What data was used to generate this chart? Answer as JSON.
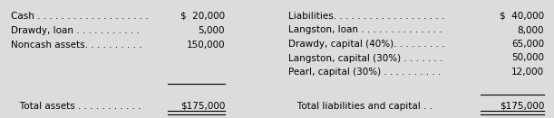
{
  "bg_color": "#dcdcdc",
  "left_items": [
    {
      "label": "Cash . . . . . . . . . . . . . . . . . . .",
      "value": "$  20,000"
    },
    {
      "label": "Drawdy, loan . . . . . . . . . . .",
      "value": "5,000"
    },
    {
      "label": "Noncash assets. . . . . . . . . .",
      "value": "150,000"
    }
  ],
  "left_total_label": "   Total assets . . . . . . . . . . .",
  "left_total_value": "$175,000",
  "right_items": [
    {
      "label": "Liabilities. . . . . . . . . . . . . . . . . . .",
      "value": "$  40,000"
    },
    {
      "label": "Langston, loan . . . . . . . . . . . . . .",
      "value": "8,000"
    },
    {
      "label": "Drawdy, capital (40%). . . . . . . . .",
      "value": "65,000"
    },
    {
      "label": "Langston, capital (30%) . . . . . . .",
      "value": "50,000"
    },
    {
      "label": "Pearl, capital (30%) . . . . . . . . . .",
      "value": "12,000"
    }
  ],
  "right_total_label": "   Total liabilities and capital . .",
  "right_total_value": "$175,000",
  "font_size": 7.5
}
